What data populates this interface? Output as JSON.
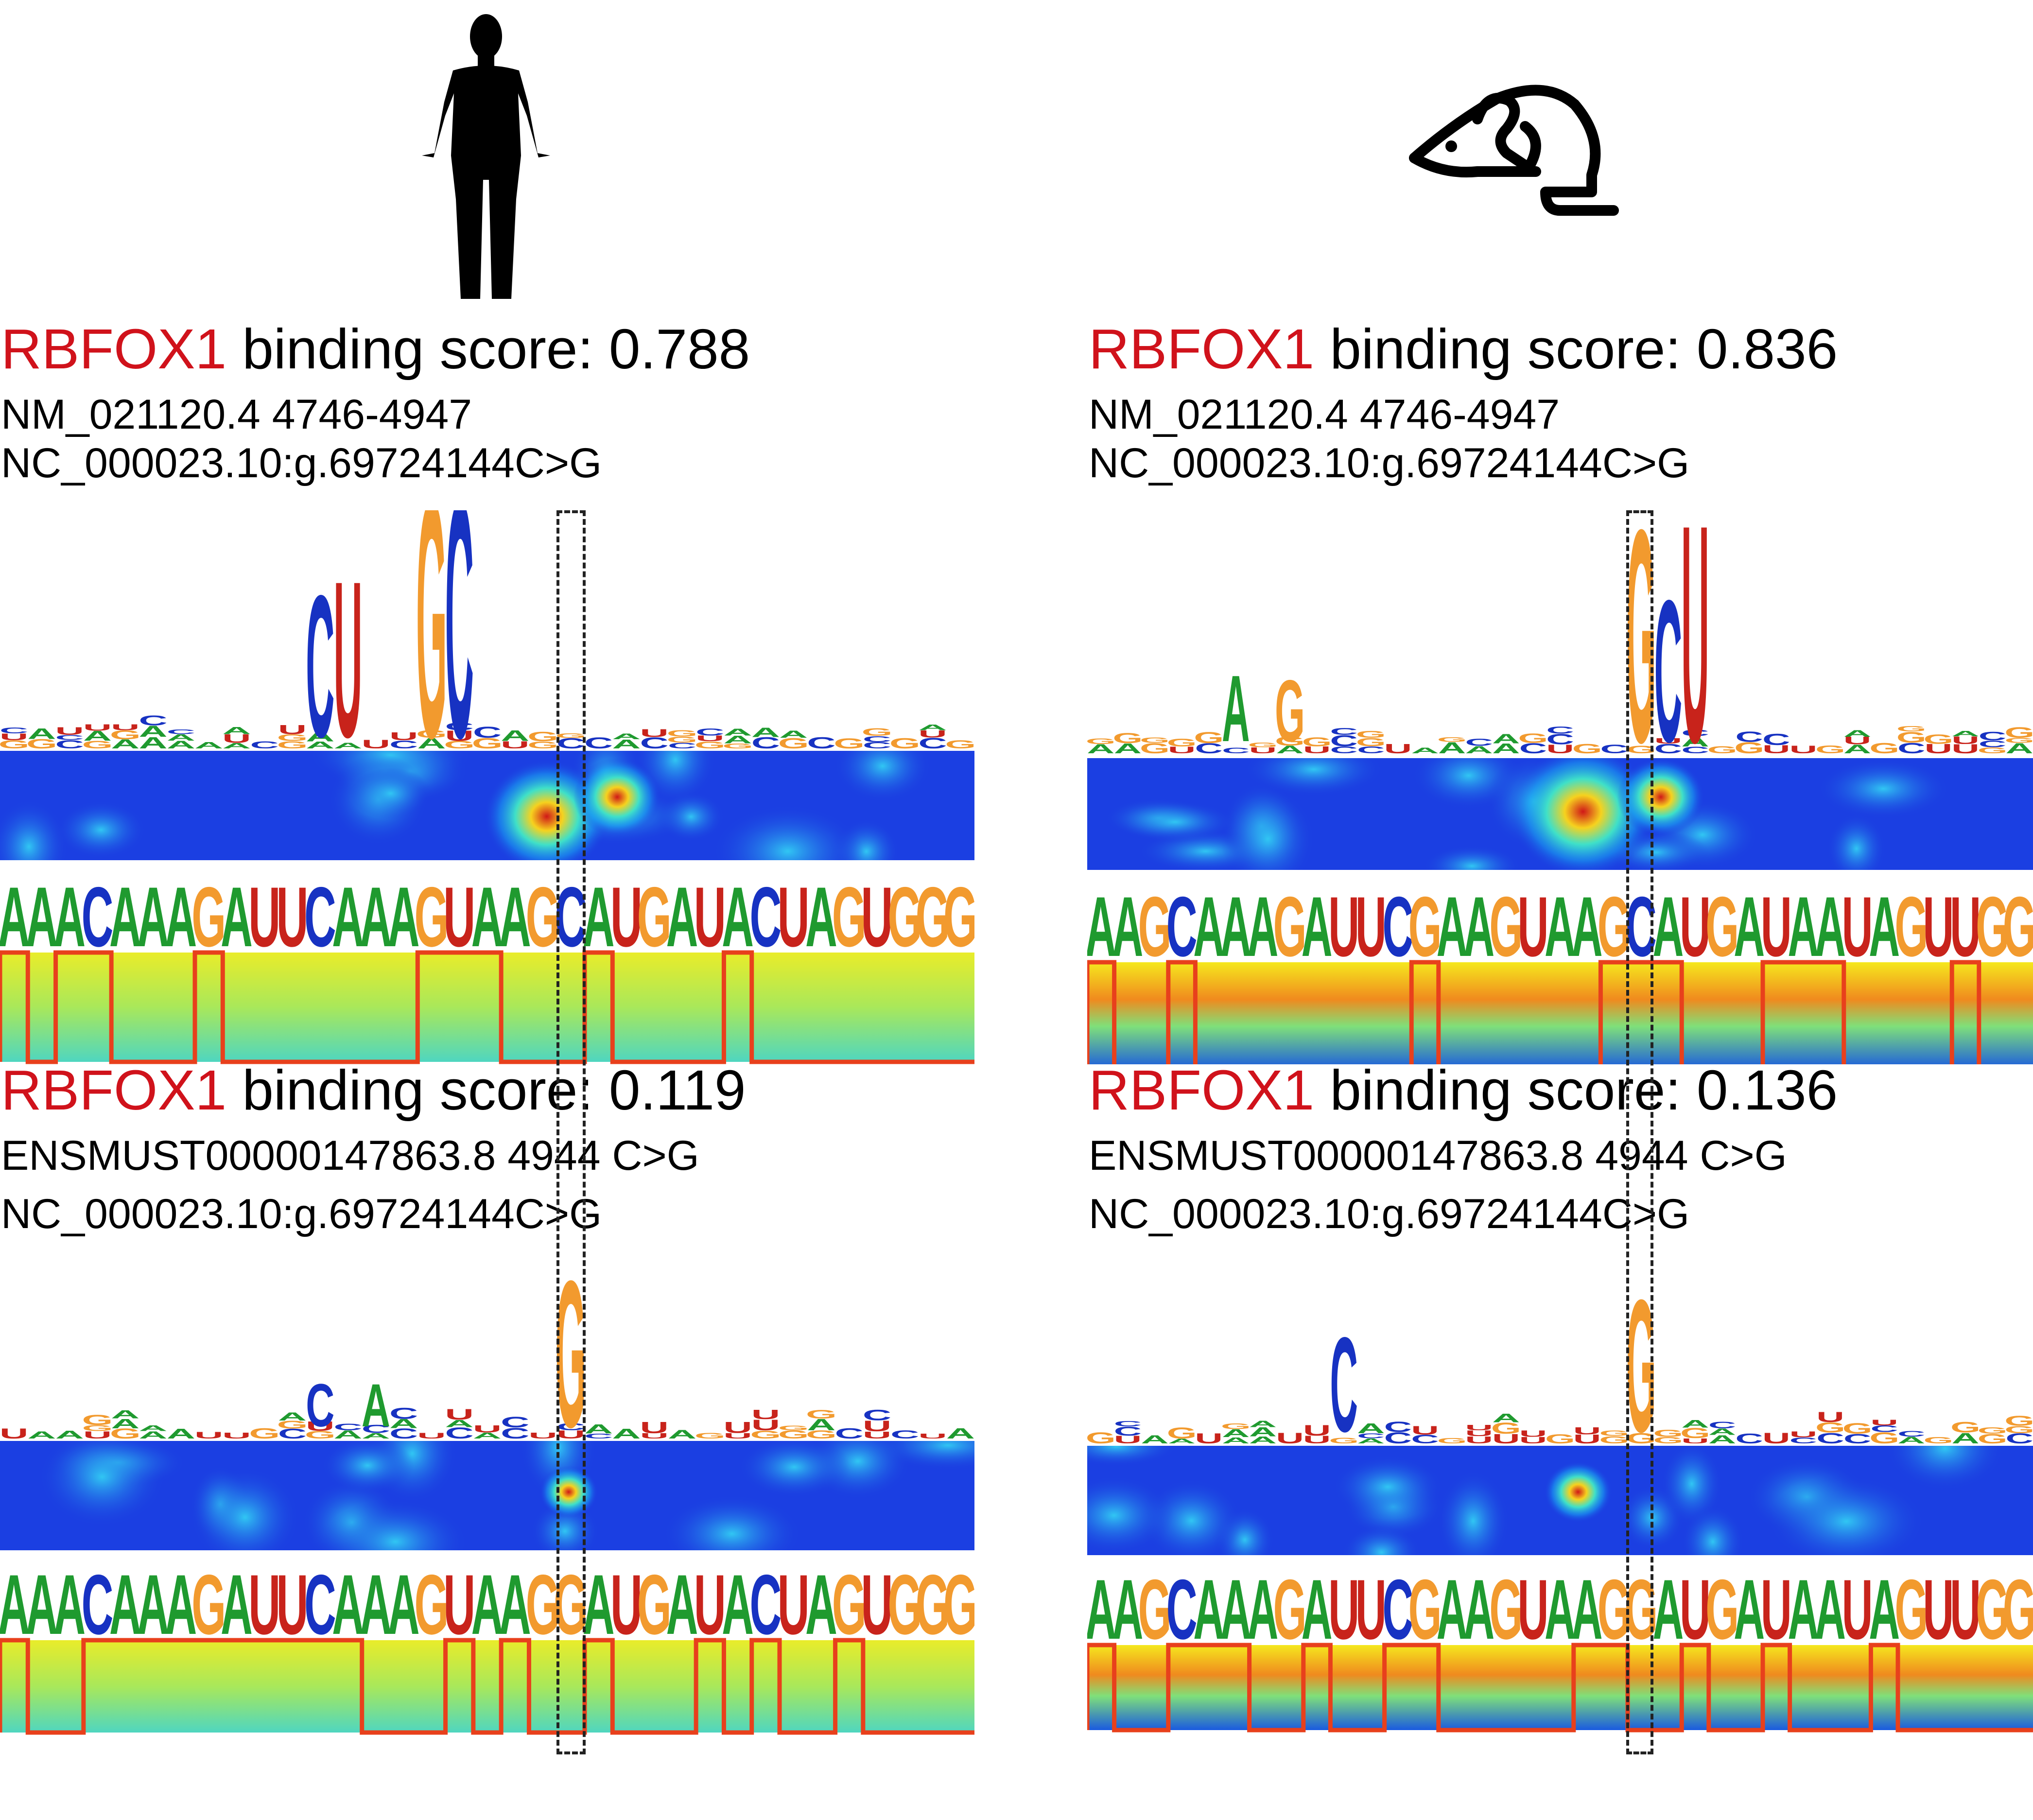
{
  "panels": [
    {
      "protein": "RBFOX1",
      "score_label": "binding score: 0.788",
      "line1": "NM_021120.4 4746-4947",
      "line2": "NC_000023.10:g.69724144C>G",
      "sequence": "AAACAAAGAUUCAAAGUAAGCAUGAUACUAGUGGG"
    },
    {
      "protein": "RBFOX1",
      "score_label": "binding score: 0.836",
      "line1": "NM_021120.4 4746-4947",
      "line2": "NC_000023.10:g.69724144C>G",
      "sequence": "AAGCAAAGAUUCGAAGUAAGCAUGAUAAUAGUUGG"
    },
    {
      "protein": "RBFOX1",
      "score_label": "binding score: 0.119",
      "line1": "ENSMUST00000147863.8 4944 C>G",
      "line2": "NC_000023.10:g.69724144C>G",
      "sequence": "AAACAAAGAUUCAAAGUAAGGAUGAUACUAGUGGG"
    },
    {
      "protein": "RBFOX1",
      "score_label": "binding score: 0.136",
      "line1": "ENSMUST00000147863.8 4944 C>G",
      "line2": "NC_000023.10:g.69724144C>G",
      "sequence": "AAGCAAAGAUUCGAAGUAAGGAUGAUAAUAGUUGG"
    }
  ],
  "icons": {
    "left": "human-silhouette-icon",
    "right": "mouse-icon"
  },
  "colors": {
    "protein": "#d0121b",
    "A": "#1f9a2f",
    "C": "#1732c2",
    "G": "#f29a2e",
    "U": "#c8231b",
    "step": "#e8401c"
  }
}
